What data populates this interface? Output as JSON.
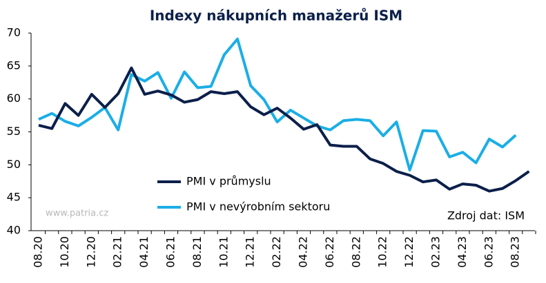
{
  "chart_data": {
    "type": "line",
    "title": "Indexy nákupních manažerů ISM",
    "categories": [
      "08.20",
      null,
      "10.20",
      null,
      "12.20",
      null,
      "02.21",
      null,
      "04.21",
      null,
      "06.21",
      null,
      "08.21",
      null,
      "10.21",
      null,
      "12.21",
      null,
      "02.22",
      null,
      "04.22",
      null,
      "06.22",
      null,
      "08.22",
      null,
      "10.22",
      null,
      "12.22",
      null,
      "02.23",
      null,
      "04.23",
      null,
      "06.23",
      null,
      "08.23",
      null
    ],
    "series": [
      {
        "name": "PMI v průmyslu",
        "color": "#0b1f4a",
        "values": [
          56.0,
          55.5,
          59.3,
          57.5,
          60.7,
          58.7,
          60.8,
          64.7,
          60.7,
          61.2,
          60.6,
          59.5,
          59.9,
          61.1,
          60.8,
          61.1,
          58.8,
          57.6,
          58.6,
          57.1,
          55.4,
          56.1,
          53.0,
          52.8,
          52.8,
          50.9,
          50.2,
          49.0,
          48.4,
          47.4,
          47.7,
          46.3,
          47.1,
          46.9,
          46.0,
          46.4,
          47.6,
          49.0
        ]
      },
      {
        "name": "PMI v nevýrobním sektoru",
        "color": "#1aaee6",
        "values": [
          56.9,
          57.8,
          56.6,
          55.9,
          57.2,
          58.7,
          55.3,
          63.7,
          62.7,
          64.0,
          60.1,
          64.1,
          61.7,
          61.9,
          66.7,
          69.1,
          62.0,
          59.9,
          56.5,
          58.3,
          57.1,
          55.9,
          55.3,
          56.7,
          56.9,
          56.7,
          54.4,
          56.5,
          49.2,
          55.2,
          55.1,
          51.2,
          51.9,
          50.3,
          53.9,
          52.7,
          54.5,
          null
        ]
      }
    ],
    "ylim": [
      40,
      70
    ],
    "yticks": [
      40,
      45,
      50,
      55,
      60,
      65,
      70
    ],
    "watermark": "www.patria.cz",
    "source": "Zdroj dat: ISM"
  }
}
